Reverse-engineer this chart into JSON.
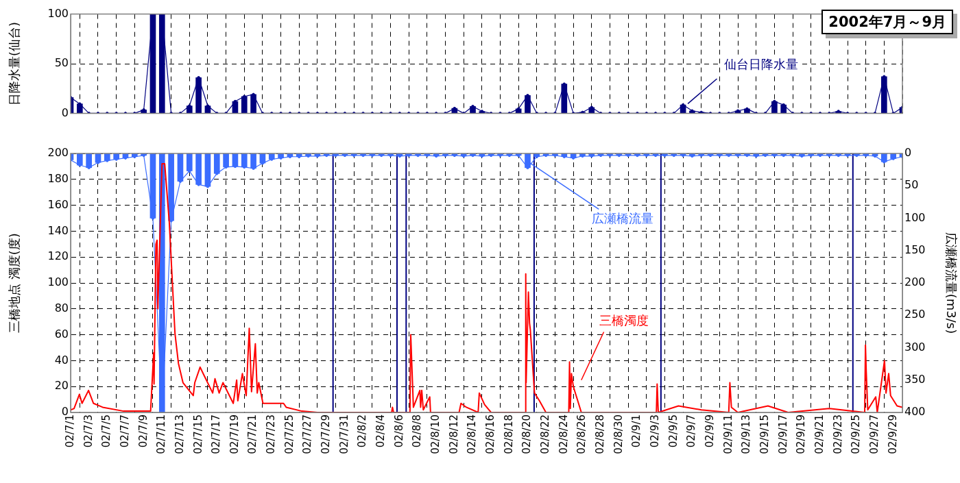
{
  "chart_data": [
    {
      "type": "bar",
      "title": "2002年7月～9月",
      "ylabel": "日降水量(仙台)",
      "legend": false,
      "grid": true,
      "tick_labels": "y",
      "x": [
        "2002-07-01",
        "2002-07-02",
        "2002-07-03",
        "2002-07-04",
        "2002-07-05",
        "2002-07-06",
        "2002-07-07",
        "2002-07-08",
        "2002-07-09",
        "2002-07-10",
        "2002-07-11",
        "2002-07-12",
        "2002-07-13",
        "2002-07-14",
        "2002-07-15",
        "2002-07-16",
        "2002-07-17",
        "2002-07-18",
        "2002-07-19",
        "2002-07-20",
        "2002-07-21",
        "2002-07-22",
        "2002-07-23",
        "2002-07-24",
        "2002-07-25",
        "2002-07-26",
        "2002-07-27",
        "2002-07-28",
        "2002-07-29",
        "2002-07-30",
        "2002-07-31",
        "2002-08-01",
        "2002-08-02",
        "2002-08-03",
        "2002-08-04",
        "2002-08-05",
        "2002-08-06",
        "2002-08-07",
        "2002-08-08",
        "2002-08-09",
        "2002-08-10",
        "2002-08-11",
        "2002-08-12",
        "2002-08-13",
        "2002-08-14",
        "2002-08-15",
        "2002-08-16",
        "2002-08-17",
        "2002-08-18",
        "2002-08-19",
        "2002-08-20",
        "2002-08-21",
        "2002-08-22",
        "2002-08-23",
        "2002-08-24",
        "2002-08-25",
        "2002-08-26",
        "2002-08-27",
        "2002-08-28",
        "2002-08-29",
        "2002-08-30",
        "2002-08-31",
        "2002-09-01",
        "2002-09-02",
        "2002-09-03",
        "2002-09-04",
        "2002-09-05",
        "2002-09-06",
        "2002-09-07",
        "2002-09-08",
        "2002-09-09",
        "2002-09-10",
        "2002-09-11",
        "2002-09-12",
        "2002-09-13",
        "2002-09-14",
        "2002-09-15",
        "2002-09-16",
        "2002-09-17",
        "2002-09-18",
        "2002-09-19",
        "2002-09-20",
        "2002-09-21",
        "2002-09-22",
        "2002-09-23",
        "2002-09-24",
        "2002-09-25",
        "2002-09-26",
        "2002-09-27",
        "2002-09-28",
        "2002-09-29",
        "2002-09-30"
      ],
      "xlim": [
        "2002-07-01",
        "2002-09-30"
      ],
      "xticks": [
        {
          "value": "2002-07-01",
          "label": null
        },
        {
          "value": "2002-07-03",
          "label": null
        },
        {
          "value": "2002-07-05",
          "label": null
        },
        {
          "value": "2002-07-07",
          "label": null
        },
        {
          "value": "2002-07-09",
          "label": null
        },
        {
          "value": "2002-07-11",
          "label": null
        },
        {
          "value": "2002-07-13",
          "label": null
        },
        {
          "value": "2002-07-15",
          "label": null
        },
        {
          "value": "2002-07-17",
          "label": null
        },
        {
          "value": "2002-07-19",
          "label": null
        },
        {
          "value": "2002-07-21",
          "label": null
        },
        {
          "value": "2002-07-23",
          "label": null
        },
        {
          "value": "2002-07-25",
          "label": null
        },
        {
          "value": "2002-07-27",
          "label": null
        },
        {
          "value": "2002-07-29",
          "label": null
        },
        {
          "value": "2002-07-31",
          "label": null
        },
        {
          "value": "2002-08-02",
          "label": null
        },
        {
          "value": "2002-08-04",
          "label": null
        },
        {
          "value": "2002-08-06",
          "label": null
        },
        {
          "value": "2002-08-08",
          "label": null
        },
        {
          "value": "2002-08-10",
          "label": null
        },
        {
          "value": "2002-08-12",
          "label": null
        },
        {
          "value": "2002-08-14",
          "label": null
        },
        {
          "value": "2002-08-16",
          "label": null
        },
        {
          "value": "2002-08-18",
          "label": null
        },
        {
          "value": "2002-08-20",
          "label": null
        },
        {
          "value": "2002-08-22",
          "label": null
        },
        {
          "value": "2002-08-24",
          "label": null
        },
        {
          "value": "2002-08-26",
          "label": null
        },
        {
          "value": "2002-08-28",
          "label": null
        },
        {
          "value": "2002-08-30",
          "label": null
        },
        {
          "value": "2002-09-01",
          "label": null
        },
        {
          "value": "2002-09-03",
          "label": null
        },
        {
          "value": "2002-09-05",
          "label": null
        },
        {
          "value": "2002-09-07",
          "label": null
        },
        {
          "value": "2002-09-09",
          "label": null
        },
        {
          "value": "2002-09-11",
          "label": null
        },
        {
          "value": "2002-09-13",
          "label": null
        },
        {
          "value": "2002-09-15",
          "label": null
        },
        {
          "value": "2002-09-17",
          "label": null
        },
        {
          "value": "2002-09-19",
          "label": null
        },
        {
          "value": "2002-09-21",
          "label": null
        },
        {
          "value": "2002-09-23",
          "label": null
        },
        {
          "value": "2002-09-25",
          "label": null
        },
        {
          "value": "2002-09-27",
          "label": null
        },
        {
          "value": "2002-09-29",
          "label": null
        }
      ],
      "ylim": [
        0,
        100
      ],
      "yticks": [
        0,
        50,
        100
      ],
      "series": [
        {
          "color": "#000080",
          "values": [
            16,
            9.5,
            0,
            0,
            0,
            0,
            0,
            0,
            3.5,
            100,
            100,
            0,
            0,
            7.5,
            36,
            7.5,
            0,
            0,
            12,
            17,
            19,
            0,
            0,
            0,
            0,
            0,
            0,
            0,
            0,
            0,
            0,
            0,
            0,
            0,
            0,
            0,
            0,
            0,
            0,
            0,
            0,
            0,
            5,
            0,
            7,
            2,
            0,
            0,
            0,
            4.5,
            18,
            0,
            0,
            0,
            29.5,
            0,
            1,
            6,
            0,
            0,
            0,
            0,
            0,
            0,
            0,
            0,
            0,
            8.5,
            2.5,
            1,
            0,
            0,
            0,
            2.5,
            4.5,
            0,
            0,
            12,
            8.5,
            0,
            0,
            0,
            0,
            0,
            2,
            0,
            0,
            0,
            0,
            37,
            0,
            6
          ]
        },
        {
          "type": "line",
          "name": "仙台日降水量",
          "color": "#000080",
          "marker": "circle",
          "values": [
            16,
            9.5,
            0,
            0,
            0,
            0,
            0,
            0,
            3.5,
            100,
            100,
            0,
            0,
            7.5,
            36,
            7.5,
            0,
            0,
            12,
            17,
            19,
            0,
            0,
            0,
            0,
            0,
            0,
            0,
            0,
            0,
            0,
            0,
            0,
            0,
            0,
            0,
            0,
            0,
            0,
            0,
            0,
            0,
            5,
            0,
            7,
            2,
            0,
            0,
            0,
            4.5,
            18,
            0,
            0,
            0,
            29.5,
            0,
            1,
            6,
            0,
            0,
            0,
            0,
            0,
            0,
            0,
            0,
            0,
            8.5,
            2.5,
            1,
            0,
            0,
            0,
            2.5,
            4.5,
            0,
            0,
            12,
            8.5,
            0,
            0,
            0,
            0,
            0,
            2,
            0,
            0,
            0,
            0,
            37,
            0,
            6
          ]
        }
      ]
    },
    {
      "type": "line",
      "ylabel": "三橋地点 濁度(度)",
      "y2label": "広瀬橋流量(m3/s)",
      "legend": false,
      "grid": true,
      "x": [
        "2002-07-01",
        "2002-07-02",
        "2002-07-03",
        "2002-07-04",
        "2002-07-05",
        "2002-07-06",
        "2002-07-07",
        "2002-07-08",
        "2002-07-09",
        "2002-07-10",
        "2002-07-11",
        "2002-07-12",
        "2002-07-13",
        "2002-07-14",
        "2002-07-15",
        "2002-07-16",
        "2002-07-17",
        "2002-07-18",
        "2002-07-19",
        "2002-07-20",
        "2002-07-21",
        "2002-07-22",
        "2002-07-23",
        "2002-07-24",
        "2002-07-25",
        "2002-07-26",
        "2002-07-27",
        "2002-07-28",
        "2002-07-29",
        "2002-07-30",
        "2002-07-31",
        "2002-08-01",
        "2002-08-02",
        "2002-08-03",
        "2002-08-04",
        "2002-08-05",
        "2002-08-06",
        "2002-08-07",
        "2002-08-08",
        "2002-08-09",
        "2002-08-10",
        "2002-08-11",
        "2002-08-12",
        "2002-08-13",
        "2002-08-14",
        "2002-08-15",
        "2002-08-16",
        "2002-08-17",
        "2002-08-18",
        "2002-08-19",
        "2002-08-20",
        "2002-08-21",
        "2002-08-22",
        "2002-08-23",
        "2002-08-24",
        "2002-08-25",
        "2002-08-26",
        "2002-08-27",
        "2002-08-28",
        "2002-08-29",
        "2002-08-30",
        "2002-08-31",
        "2002-09-01",
        "2002-09-02",
        "2002-09-03",
        "2002-09-04",
        "2002-09-05",
        "2002-09-06",
        "2002-09-07",
        "2002-09-08",
        "2002-09-09",
        "2002-09-10",
        "2002-09-11",
        "2002-09-12",
        "2002-09-13",
        "2002-09-14",
        "2002-09-15",
        "2002-09-16",
        "2002-09-17",
        "2002-09-18",
        "2002-09-19",
        "2002-09-20",
        "2002-09-21",
        "2002-09-22",
        "2002-09-23",
        "2002-09-24",
        "2002-09-25",
        "2002-09-26",
        "2002-09-27",
        "2002-09-28",
        "2002-09-29",
        "2002-09-30"
      ],
      "xlim": [
        "2002-07-01",
        "2002-09-30"
      ],
      "xticks": [
        {
          "value": "2002-07-01",
          "label": "02/7/1"
        },
        {
          "value": "2002-07-03",
          "label": "02/7/3"
        },
        {
          "value": "2002-07-05",
          "label": "02/7/5"
        },
        {
          "value": "2002-07-07",
          "label": "02/7/7"
        },
        {
          "value": "2002-07-09",
          "label": "02/7/9"
        },
        {
          "value": "2002-07-11",
          "label": "02/7/11"
        },
        {
          "value": "2002-07-13",
          "label": "02/7/13"
        },
        {
          "value": "2002-07-15",
          "label": "02/7/15"
        },
        {
          "value": "2002-07-17",
          "label": "02/7/17"
        },
        {
          "value": "2002-07-19",
          "label": "02/7/19"
        },
        {
          "value": "2002-07-21",
          "label": "02/7/21"
        },
        {
          "value": "2002-07-23",
          "label": "02/7/23"
        },
        {
          "value": "2002-07-25",
          "label": "02/7/25"
        },
        {
          "value": "2002-07-27",
          "label": "02/7/27"
        },
        {
          "value": "2002-07-29",
          "label": "02/7/29"
        },
        {
          "value": "2002-07-31",
          "label": "02/7/31"
        },
        {
          "value": "2002-08-02",
          "label": "02/8/2"
        },
        {
          "value": "2002-08-04",
          "label": "02/8/4"
        },
        {
          "value": "2002-08-06",
          "label": "02/8/6"
        },
        {
          "value": "2002-08-08",
          "label": "02/8/8"
        },
        {
          "value": "2002-08-10",
          "label": "02/8/10"
        },
        {
          "value": "2002-08-12",
          "label": "02/8/12"
        },
        {
          "value": "2002-08-14",
          "label": "02/8/14"
        },
        {
          "value": "2002-08-16",
          "label": "02/8/16"
        },
        {
          "value": "2002-08-18",
          "label": "02/8/18"
        },
        {
          "value": "2002-08-20",
          "label": "02/8/20"
        },
        {
          "value": "2002-08-22",
          "label": "02/8/22"
        },
        {
          "value": "2002-08-24",
          "label": "02/8/24"
        },
        {
          "value": "2002-08-26",
          "label": "02/8/26"
        },
        {
          "value": "2002-08-28",
          "label": "02/8/28"
        },
        {
          "value": "2002-08-30",
          "label": "02/8/30"
        },
        {
          "value": "2002-09-01",
          "label": "02/9/1"
        },
        {
          "value": "2002-09-03",
          "label": "02/9/3"
        },
        {
          "value": "2002-09-05",
          "label": "02/9/5"
        },
        {
          "value": "2002-09-07",
          "label": "02/9/7"
        },
        {
          "value": "2002-09-09",
          "label": "02/9/9"
        },
        {
          "value": "2002-09-11",
          "label": "02/9/11"
        },
        {
          "value": "2002-09-13",
          "label": "02/9/13"
        },
        {
          "value": "2002-09-15",
          "label": "02/9/15"
        },
        {
          "value": "2002-09-17",
          "label": "02/9/17"
        },
        {
          "value": "2002-09-19",
          "label": "02/9/19"
        },
        {
          "value": "2002-09-21",
          "label": "02/9/21"
        },
        {
          "value": "2002-09-23",
          "label": "02/9/23"
        },
        {
          "value": "2002-09-25",
          "label": "02/9/25"
        },
        {
          "value": "2002-09-27",
          "label": "02/9/27"
        },
        {
          "value": "2002-09-29",
          "label": "02/9/29"
        }
      ],
      "ylim": [
        0,
        200
      ],
      "yticks": [
        0,
        20,
        40,
        60,
        80,
        100,
        120,
        140,
        160,
        180,
        200
      ],
      "y2lim": [
        400,
        0
      ],
      "y2ticks": [
        0,
        50,
        100,
        150,
        200,
        250,
        300,
        350,
        400
      ],
      "ref_lines": [
        {
          "axis": "x",
          "value": "2002-07-29T17:00",
          "color": "#000080"
        },
        {
          "axis": "x",
          "value": "2002-08-05T17:00",
          "color": "#000080"
        },
        {
          "axis": "x",
          "value": "2002-08-06T17:00",
          "color": "#000080"
        },
        {
          "axis": "x",
          "value": "2002-08-20T17:00",
          "color": "#000080"
        },
        {
          "axis": "x",
          "value": "2002-09-03T14:00",
          "color": "#000080"
        },
        {
          "axis": "x",
          "value": "2002-09-24T14:00",
          "color": "#000080"
        }
      ],
      "series": [
        {
          "type": "bar",
          "axis": "y2",
          "color": "#3a6cff",
          "values": [
            10,
            18,
            22,
            14,
            11,
            9,
            7,
            5,
            3,
            100,
            400,
            104,
            43,
            27,
            48,
            51,
            31,
            21,
            20,
            21,
            23,
            15,
            9,
            7,
            5,
            5,
            4,
            4,
            3,
            3,
            3,
            3,
            3,
            3,
            3,
            3,
            4,
            3,
            3,
            3,
            4,
            3,
            3,
            4,
            3,
            4,
            3,
            3,
            3,
            3,
            22,
            5,
            3,
            3,
            5,
            7,
            4,
            4,
            3,
            3,
            3,
            3,
            3,
            3,
            3,
            3,
            3,
            3,
            4,
            3,
            3,
            3,
            3,
            3,
            3,
            4,
            3,
            3,
            3,
            3,
            4,
            3,
            3,
            3,
            3,
            3,
            3,
            3,
            4,
            13,
            8,
            5
          ]
        },
        {
          "axis": "y2",
          "name": "広瀬橋流量",
          "color": "#3a6cff",
          "marker": "circle",
          "values": [
            10,
            18,
            22,
            14,
            11,
            9,
            7,
            5,
            3,
            100,
            400,
            104,
            43,
            27,
            48,
            51,
            31,
            21,
            20,
            21,
            23,
            15,
            9,
            7,
            5,
            5,
            4,
            4,
            3,
            3,
            3,
            3,
            3,
            3,
            3,
            3,
            4,
            3,
            3,
            3,
            4,
            3,
            3,
            4,
            3,
            4,
            3,
            3,
            3,
            3,
            22,
            5,
            3,
            3,
            5,
            7,
            4,
            4,
            3,
            3,
            3,
            3,
            3,
            3,
            3,
            3,
            3,
            3,
            4,
            3,
            3,
            3,
            3,
            3,
            3,
            4,
            3,
            3,
            3,
            3,
            4,
            3,
            3,
            3,
            3,
            3,
            3,
            3,
            4,
            13,
            8,
            5
          ]
        },
        {
          "name": "三橋濁度",
          "color": "#ff0000",
          "marker": "none",
          "x": [
            "2002-07-01T00:00",
            "2002-07-01T09:00",
            "2002-07-01T23:00",
            "2002-07-02T06:00",
            "2002-07-02T23:00",
            "2002-07-03T12:00",
            "2002-07-04T12:00",
            "2002-07-06T19:00",
            "2002-07-09T18:00",
            "2002-07-10T02:00",
            "2002-07-10T03:00",
            "2002-07-10T08:00",
            "2002-07-10T11:00",
            "2002-07-10T13:00",
            "2002-07-11T00:00",
            "2002-07-11T07:00",
            "2002-07-11T19:00",
            "2002-07-12T10:00",
            "2002-07-12T19:00",
            "2002-07-13T07:00",
            "2002-07-14T10:00",
            "2002-07-14T14:00",
            "2002-07-15T04:00",
            "2002-07-15T12:00",
            "2002-07-16T13:00",
            "2002-07-16T19:00",
            "2002-07-17T06:00",
            "2002-07-17T16:00",
            "2002-07-18T19:00",
            "2002-07-19T04:00",
            "2002-07-19T07:00",
            "2002-07-19T19:00",
            "2002-07-20T05:00",
            "2002-07-20T13:00",
            "2002-07-20T19:00",
            "2002-07-21T05:00",
            "2002-07-21T10:00",
            "2002-07-21T14:00",
            "2002-07-22T01:00",
            "2002-07-24T07:00",
            "2002-07-24T14:00",
            "2002-07-26T07:00",
            "2002-07-28T00:00",
            "2002-08-05T03:00",
            "2002-08-05T05:00",
            "2002-08-05T08:00",
            "2002-08-07T03:00",
            "2002-08-07T05:00",
            "2002-08-07T12:00",
            "2002-08-08T05:00",
            "2002-08-08T07:00",
            "2002-08-08T10:00",
            "2002-08-08T14:00",
            "2002-08-09T07:00",
            "2002-08-09T09:00",
            "2002-08-12T12:00",
            "2002-08-12T17:00",
            "2002-08-13T07:00",
            "2002-08-14T14:00",
            "2002-08-14T17:00",
            "2002-08-15T07:00",
            "2002-08-16T00:00",
            "2002-08-19T18:00",
            "2002-08-19T19:00",
            "2002-08-19T20:00",
            "2002-08-20T02:00",
            "2002-08-20T05:00",
            "2002-08-20T07:00",
            "2002-08-20T18:00",
            "2002-08-21T07:00",
            "2002-08-22T00:00",
            "2002-08-24T12:00",
            "2002-08-24T14:00",
            "2002-08-24T16:00",
            "2002-08-24T19:00",
            "2002-08-25T00:00",
            "2002-08-25T21:00",
            "2002-09-03T02:00",
            "2002-09-03T04:00",
            "2002-09-03T07:00",
            "2002-09-05T12:00",
            "2002-09-08T00:00",
            "2002-09-11T00:00",
            "2002-09-11T03:00",
            "2002-09-11T07:00",
            "2002-09-12T00:00",
            "2002-09-15T07:00",
            "2002-09-17T12:00",
            "2002-09-22T00:00",
            "2002-09-25T21:00",
            "2002-09-25T23:00",
            "2002-09-26T01:00",
            "2002-09-26T05:00",
            "2002-09-27T02:00",
            "2002-09-27T06:00",
            "2002-09-28T01:00",
            "2002-09-28T05:00",
            "2002-09-28T12:00",
            "2002-09-28T17:00",
            "2002-09-29T10:00",
            "2002-09-30T00:00"
          ],
          "values": [
            2,
            3,
            14,
            7,
            17,
            7,
            4,
            1,
            1,
            46,
            22,
            130,
            133,
            80,
            192,
            192,
            147,
            61,
            38,
            23,
            13,
            23,
            35,
            30,
            15,
            26,
            15,
            23,
            7,
            25,
            9,
            30,
            13,
            65,
            16,
            53,
            15,
            23,
            7,
            7,
            4,
            1,
            0,
            0,
            4,
            0,
            0,
            60,
            4,
            17,
            4,
            17,
            2,
            12,
            0,
            0,
            7,
            4,
            0,
            15,
            6,
            0,
            0,
            107,
            23,
            93,
            69,
            64,
            15,
            9,
            0,
            0,
            39,
            3,
            30,
            20,
            0,
            0,
            22,
            0,
            5,
            2,
            0,
            23,
            4,
            0,
            5,
            0,
            3,
            0,
            52,
            32,
            2,
            12,
            0,
            40,
            15,
            30,
            13,
            5,
            4
          ]
        }
      ]
    }
  ]
}
